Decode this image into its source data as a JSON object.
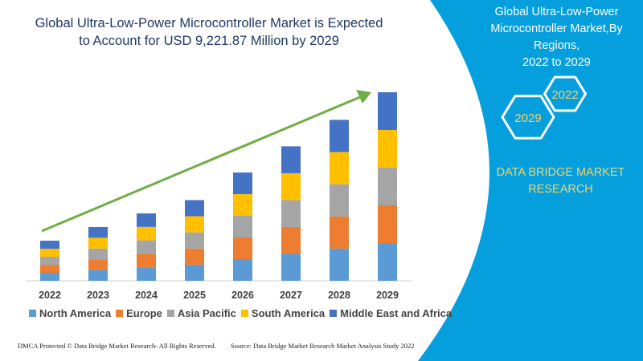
{
  "title": {
    "line1": "Global Ultra-Low-Power Microcontroller Market is Expected",
    "line2": "to Account for USD 9,221.87 Million by 2029"
  },
  "side_panel": {
    "title_line1": "Global Ultra-Low-Power",
    "title_line2": "Microcontroller Market,By Regions,",
    "title_line3": "2022 to 2029",
    "hex_1": "2022",
    "hex_2": "2029",
    "brand_line1": "DATA BRIDGE MARKET",
    "brand_line2": "RESEARCH",
    "panel_color": "#059fdd",
    "brand_color": "#f2d36b"
  },
  "footer": {
    "left": "DMCA Protected © Data Bridge Market Research- All Rights Reserved.",
    "right": "Source: Data Bridge Market Research Market Analysis Study 2022"
  },
  "chart_data": {
    "type": "bar",
    "stacked": true,
    "categories": [
      "2022",
      "2023",
      "2024",
      "2025",
      "2026",
      "2027",
      "2028",
      "2029"
    ],
    "ylabel": "",
    "xlabel": "",
    "grid": false,
    "legend_position": "bottom",
    "trend_arrow": true,
    "trend_arrow_color": "#70ad47",
    "series": [
      {
        "name": "North America",
        "color": "#5b9bd5",
        "values": [
          392,
          526,
          659,
          789,
          1059,
          1315,
          1574,
          1844
        ]
      },
      {
        "name": "Europe",
        "color": "#ed7d31",
        "values": [
          392,
          526,
          659,
          789,
          1059,
          1315,
          1574,
          1844
        ]
      },
      {
        "name": "Asia Pacific",
        "color": "#a5a5a5",
        "values": [
          392,
          526,
          659,
          789,
          1059,
          1315,
          1574,
          1844
        ]
      },
      {
        "name": "South America",
        "color": "#ffc000",
        "values": [
          392,
          526,
          659,
          789,
          1059,
          1315,
          1574,
          1844
        ]
      },
      {
        "name": "Middle East and Africa",
        "color": "#4472c4",
        "values": [
          392,
          526,
          659,
          789,
          1059,
          1315,
          1574,
          1844
        ]
      }
    ]
  }
}
